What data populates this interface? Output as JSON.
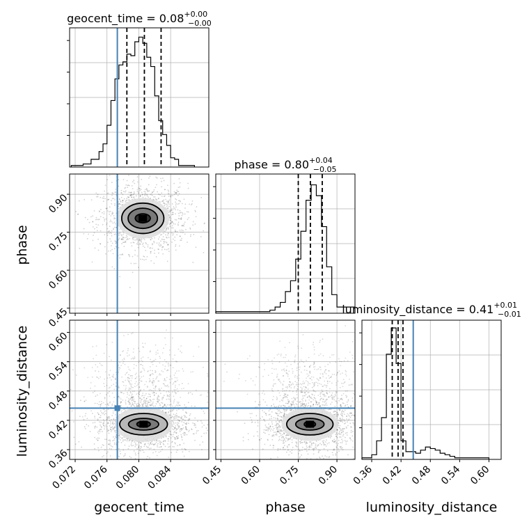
{
  "chart_data": {
    "type": "corner",
    "parameters": [
      "geocent_time",
      "phase",
      "luminosity_distance"
    ],
    "truths": {
      "geocent_time": 0.0773,
      "phase": null,
      "luminosity_distance": 0.445
    },
    "marginals": [
      {
        "parameter": "geocent_time",
        "title_name": "geocent_time",
        "median": "0.08",
        "upper": "+0.00",
        "lower": "−0.00",
        "quantiles": [
          0.0785,
          0.0807,
          0.0828
        ],
        "xlim": [
          0.0713,
          0.0888
        ],
        "bin_edges": [
          0.0715,
          0.073,
          0.074,
          0.075,
          0.0755,
          0.076,
          0.0765,
          0.077,
          0.0775,
          0.078,
          0.0785,
          0.079,
          0.0795,
          0.08,
          0.0805,
          0.081,
          0.0815,
          0.082,
          0.0825,
          0.083,
          0.0835,
          0.084,
          0.0845,
          0.085,
          0.0855,
          0.087
        ],
        "counts": [
          0.01,
          0.02,
          0.05,
          0.1,
          0.15,
          0.27,
          0.43,
          0.57,
          0.66,
          0.68,
          0.73,
          0.72,
          0.81,
          0.84,
          0.8,
          0.71,
          0.65,
          0.46,
          0.3,
          0.21,
          0.14,
          0.06,
          0.05,
          0.01,
          0.01
        ],
        "xticks": [],
        "show_x_ticklabels": false
      },
      {
        "parameter": "phase",
        "title_name": "phase",
        "median": "0.80",
        "upper": "+0.04",
        "lower": "−0.05",
        "quantiles": [
          0.75,
          0.797,
          0.843
        ],
        "xlim": [
          0.43,
          0.97
        ],
        "bin_edges": [
          0.43,
          0.64,
          0.66,
          0.68,
          0.7,
          0.72,
          0.74,
          0.76,
          0.78,
          0.8,
          0.82,
          0.84,
          0.86,
          0.88,
          0.9,
          0.97
        ],
        "counts": [
          0.01,
          0.02,
          0.04,
          0.07,
          0.14,
          0.21,
          0.35,
          0.53,
          0.73,
          0.83,
          0.76,
          0.56,
          0.3,
          0.12,
          0.04
        ],
        "xticks": [],
        "show_x_ticklabels": false
      },
      {
        "parameter": "luminosity_distance",
        "title_name": "luminosity_distance",
        "median": "0.41",
        "upper": "+0.01",
        "lower": "−0.01",
        "quantiles": [
          0.402,
          0.414,
          0.424
        ],
        "xlim": [
          0.34,
          0.625
        ],
        "bin_edges": [
          0.34,
          0.36,
          0.37,
          0.38,
          0.39,
          0.4,
          0.41,
          0.42,
          0.43,
          0.44,
          0.45,
          0.46,
          0.47,
          0.48,
          0.49,
          0.5,
          0.51,
          0.52,
          0.53,
          0.54,
          0.6
        ],
        "counts": [
          0.01,
          0.03,
          0.12,
          0.27,
          0.68,
          0.85,
          0.62,
          0.12,
          0.05,
          0.05,
          0.04,
          0.06,
          0.08,
          0.07,
          0.06,
          0.04,
          0.03,
          0.02,
          0.01,
          0.01
        ],
        "xticks": [
          0.36,
          0.42,
          0.48,
          0.54,
          0.6
        ],
        "xtick_labels": [
          "0.36",
          "0.42",
          "0.48",
          "0.54",
          "0.60"
        ],
        "show_x_ticklabels": true
      }
    ],
    "pairs": [
      {
        "x": "geocent_time",
        "y": "phase",
        "xlim": [
          0.0713,
          0.0888
        ],
        "ylim": [
          0.43,
          0.98
        ],
        "center": [
          0.0805,
          0.805
        ],
        "contour_levels": [
          {
            "rx": 0.00095,
            "ry": 0.018,
            "fill": 0.85
          },
          {
            "rx": 0.00185,
            "ry": 0.04,
            "fill": 0.55
          },
          {
            "rx": 0.00265,
            "ry": 0.06,
            "fill": 0.3
          },
          {
            "rx": 0.0033,
            "ry": 0.08,
            "fill": 0.12
          }
        ],
        "yticks": [
          0.45,
          0.6,
          0.75,
          0.9
        ],
        "ytick_labels": [
          "0.45",
          "0.60",
          "0.75",
          "0.90"
        ]
      },
      {
        "x": "geocent_time",
        "y": "luminosity_distance",
        "xlim": [
          0.0713,
          0.0888
        ],
        "ylim": [
          0.34,
          0.625
        ],
        "center": [
          0.0806,
          0.412
        ],
        "contour_levels": [
          {
            "rx": 0.00085,
            "ry": 0.006,
            "fill": 0.85
          },
          {
            "rx": 0.0019,
            "ry": 0.012,
            "fill": 0.55
          },
          {
            "rx": 0.003,
            "ry": 0.022,
            "fill": 0.3
          },
          {
            "rx": 0.0036,
            "ry": 0.036,
            "fill": 0.12
          }
        ],
        "secondary_cluster": [
          0.0805,
          0.495
        ],
        "xticks": [
          0.072,
          0.076,
          0.08,
          0.084
        ],
        "xtick_labels": [
          "0.072",
          "0.076",
          "0.080",
          "0.084"
        ],
        "yticks": [
          0.36,
          0.42,
          0.48,
          0.54,
          0.6
        ],
        "ytick_labels": [
          "0.36",
          "0.42",
          "0.48",
          "0.54",
          "0.60"
        ]
      },
      {
        "x": "phase",
        "y": "luminosity_distance",
        "xlim": [
          0.43,
          0.97
        ],
        "ylim": [
          0.34,
          0.625
        ],
        "center": [
          0.795,
          0.412
        ],
        "contour_levels": [
          {
            "rx": 0.022,
            "ry": 0.006,
            "fill": 0.85
          },
          {
            "rx": 0.055,
            "ry": 0.012,
            "fill": 0.55
          },
          {
            "rx": 0.09,
            "ry": 0.022,
            "fill": 0.3
          },
          {
            "rx": 0.11,
            "ry": 0.034,
            "fill": 0.12
          }
        ],
        "secondary_cluster": [
          0.8,
          0.49
        ],
        "xticks": [
          0.45,
          0.6,
          0.75,
          0.9
        ],
        "xtick_labels": [
          "0.45",
          "0.60",
          "0.75",
          "0.90"
        ]
      }
    ],
    "axis_labels": {
      "geocent_time": "geocent_time",
      "phase": "phase",
      "luminosity_distance": "luminosity_distance"
    },
    "grid": true,
    "colors": {
      "truth": "#4682b4",
      "hist": "#000000",
      "points": "#000000",
      "grid": "#b0b0b0"
    }
  }
}
